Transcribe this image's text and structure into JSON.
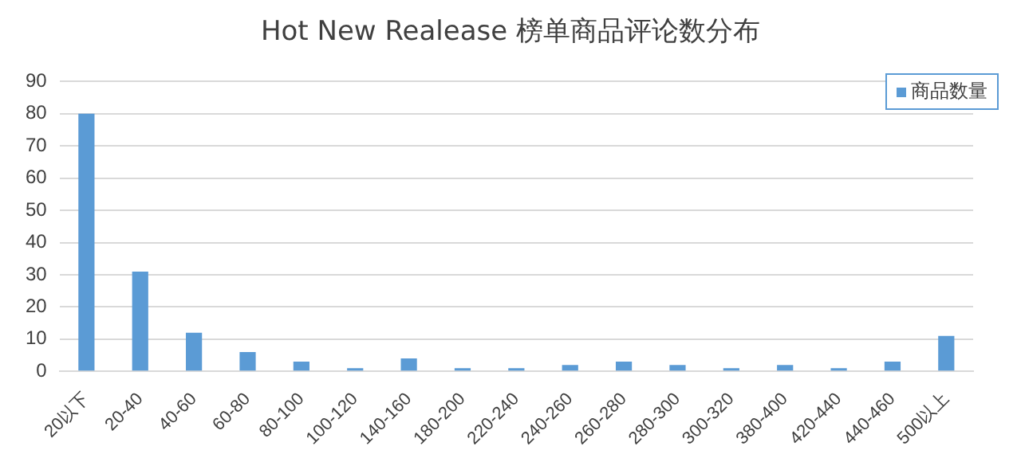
{
  "chart_data": {
    "type": "bar",
    "title": "Hot New Realease 榜单商品评论数分布",
    "categories": [
      "20以下",
      "20-40",
      "40-60",
      "60-80",
      "80-100",
      "100-120",
      "140-160",
      "180-200",
      "220-240",
      "240-260",
      "260-280",
      "280-300",
      "300-320",
      "380-400",
      "420-440",
      "440-460",
      "500以上"
    ],
    "series": [
      {
        "name": "商品数量",
        "color": "#5b9bd5",
        "values": [
          80,
          31,
          12,
          6,
          3,
          1,
          4,
          1,
          1,
          2,
          3,
          2,
          1,
          2,
          1,
          3,
          11
        ]
      }
    ],
    "ylim": [
      0,
      90
    ],
    "yticks": [
      0,
      10,
      20,
      30,
      40,
      50,
      60,
      70,
      80,
      90
    ],
    "grid": "y",
    "legend": "top right"
  }
}
